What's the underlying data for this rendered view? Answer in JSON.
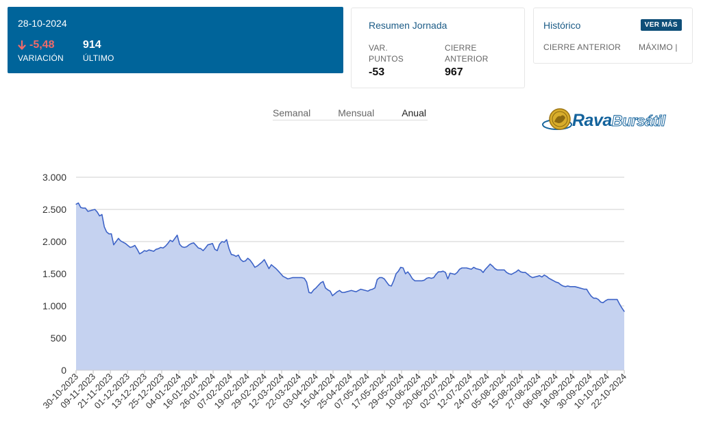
{
  "quote": {
    "date": "28-10-2024",
    "variation_value": "-5,48",
    "variation_label": "VARIACIÓN",
    "last_value": "914",
    "last_label": "ÚLTIMO"
  },
  "summary": {
    "title": "Resumen Jornada",
    "var_points_label_1": "VAR.",
    "var_points_label_2": "PUNTOS",
    "var_points_value": "-53",
    "prev_close_label_1": "CIERRE",
    "prev_close_label_2": "ANTERIOR",
    "prev_close_value": "967"
  },
  "history": {
    "title": "Histórico",
    "see_more": "VER MÁS",
    "col1": "CIERRE ANTERIOR",
    "col2": "MÁXIMO |"
  },
  "tabs": [
    "Semanal",
    "Mensual",
    "Anual"
  ],
  "active_tab": "Anual",
  "logo": {
    "text_main": "Rava",
    "text_sub": "Bursátil"
  },
  "colors": {
    "header_bg": "#00649a",
    "negative": "#f06a6a",
    "line": "#3d63c7",
    "fill": "#c5d2f0"
  },
  "chart_data": {
    "type": "area",
    "ylim": [
      0,
      3000
    ],
    "yticks": [
      0,
      500,
      1000,
      1500,
      2000,
      2500,
      3000
    ],
    "ytick_labels": [
      "0",
      "500",
      "1.000",
      "1.500",
      "2.000",
      "2.500",
      "3.000"
    ],
    "grid": true,
    "xtick_labels": [
      "30-10-2023",
      "09-11-2023",
      "21-11-2023",
      "01-12-2023",
      "13-12-2023",
      "25-12-2023",
      "04-01-2024",
      "16-01-2024",
      "26-01-2024",
      "07-02-2024",
      "19-02-2024",
      "29-02-2024",
      "12-03-2024",
      "22-03-2024",
      "03-04-2024",
      "15-04-2024",
      "25-04-2024",
      "07-05-2024",
      "17-05-2024",
      "29-05-2024",
      "10-06-2024",
      "20-06-2024",
      "02-07-2024",
      "12-07-2024",
      "24-07-2024",
      "05-08-2024",
      "15-08-2024",
      "27-08-2024",
      "06-09-2024",
      "18-09-2024",
      "30-09-2024",
      "10-10-2024",
      "22-10-2024"
    ],
    "values": [
      2580,
      2600,
      2530,
      2520,
      2520,
      2470,
      2480,
      2490,
      2500,
      2460,
      2400,
      2420,
      2230,
      2150,
      2120,
      2120,
      1950,
      2000,
      2050,
      2010,
      1990,
      1970,
      1940,
      1910,
      1920,
      1940,
      1880,
      1810,
      1830,
      1860,
      1850,
      1870,
      1860,
      1850,
      1880,
      1890,
      1910,
      1900,
      1930,
      1970,
      2020,
      2000,
      2050,
      2100,
      1960,
      1920,
      1910,
      1920,
      1950,
      1970,
      1980,
      1940,
      1900,
      1890,
      1860,
      1900,
      1950,
      1960,
      1970,
      1880,
      1860,
      1960,
      2000,
      1990,
      2030,
      1890,
      1800,
      1790,
      1770,
      1790,
      1720,
      1690,
      1700,
      1740,
      1710,
      1660,
      1600,
      1620,
      1650,
      1680,
      1720,
      1650,
      1580,
      1640,
      1610,
      1580,
      1540,
      1500,
      1460,
      1440,
      1420,
      1430,
      1440,
      1440,
      1440,
      1440,
      1440,
      1430,
      1370,
      1210,
      1200,
      1250,
      1280,
      1320,
      1360,
      1380,
      1280,
      1250,
      1230,
      1160,
      1190,
      1220,
      1240,
      1210,
      1210,
      1220,
      1230,
      1240,
      1230,
      1220,
      1240,
      1260,
      1250,
      1240,
      1230,
      1250,
      1260,
      1280,
      1410,
      1440,
      1440,
      1420,
      1370,
      1320,
      1310,
      1390,
      1500,
      1540,
      1600,
      1590,
      1500,
      1530,
      1480,
      1420,
      1390,
      1390,
      1390,
      1390,
      1400,
      1430,
      1440,
      1430,
      1440,
      1490,
      1530,
      1530,
      1540,
      1520,
      1420,
      1510,
      1500,
      1490,
      1520,
      1570,
      1590,
      1590,
      1590,
      1580,
      1570,
      1600,
      1580,
      1570,
      1560,
      1520,
      1570,
      1610,
      1650,
      1620,
      1580,
      1560,
      1560,
      1560,
      1560,
      1520,
      1500,
      1490,
      1510,
      1530,
      1560,
      1530,
      1520,
      1520,
      1490,
      1460,
      1440,
      1450,
      1460,
      1470,
      1450,
      1480,
      1460,
      1430,
      1410,
      1390,
      1370,
      1360,
      1330,
      1310,
      1300,
      1310,
      1300,
      1300,
      1300,
      1290,
      1280,
      1270,
      1260,
      1260,
      1200,
      1150,
      1120,
      1120,
      1100,
      1060,
      1050,
      1080,
      1100,
      1100,
      1100,
      1100,
      1100,
      1030,
      967,
      914
    ]
  }
}
